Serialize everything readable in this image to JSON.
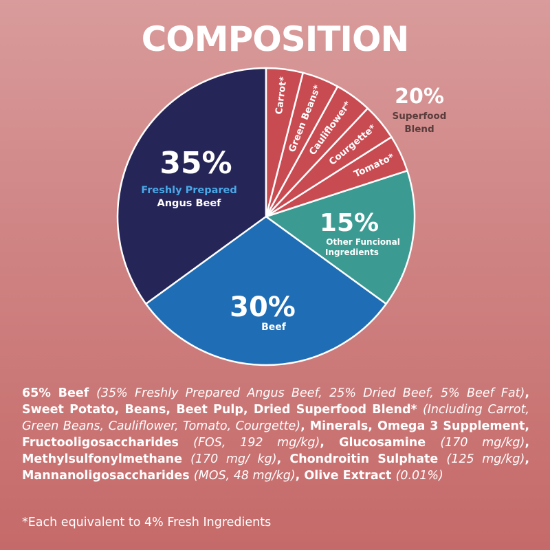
{
  "title": "COMPOSITION",
  "chart_data": {
    "type": "pie",
    "slices": [
      {
        "value": 35,
        "label": "Freshly Prepared",
        "sublabel": "Angus Beef",
        "pct_text": "35%",
        "color": "#262557"
      },
      {
        "value": 30,
        "label": "Beef",
        "pct_text": "30%",
        "color": "#1f6eb5"
      },
      {
        "value": 15,
        "label": "Other Funcional",
        "sublabel": "Ingredients",
        "pct_text": "15%",
        "color": "#3b9a91"
      },
      {
        "value": 4,
        "label": "Tomato*",
        "color": "#c94b52"
      },
      {
        "value": 4,
        "label": "Courgette*",
        "color": "#c94b52"
      },
      {
        "value": 4,
        "label": "Cauliflower*",
        "color": "#c94b52"
      },
      {
        "value": 4,
        "label": "Green Beans*",
        "color": "#c94b52"
      },
      {
        "value": 4,
        "label": "Carrot*",
        "color": "#c94b52"
      }
    ],
    "group_annotation": {
      "pct_text": "20%",
      "line1": "Superfood",
      "line2": "Blend"
    },
    "colors": {
      "label_light": "#4aa8e8",
      "annotation_text": "#5a3c3c"
    }
  },
  "ingredients": [
    {
      "text": "65% Beef ",
      "style": "b"
    },
    {
      "text": "(35% Freshly Prepared Angus Beef, 25% Dried Beef, 5% Beef Fat)",
      "style": "i"
    },
    {
      "text": ", Sweet Potato, Beans, Beet Pulp, Dried Superfood Blend* ",
      "style": "b"
    },
    {
      "text": "(Including Carrot, Green Beans, Cauliflower, Tomato, Courgette)",
      "style": "i"
    },
    {
      "text": ", Minerals, Omega 3 Supplement, Fructooligosaccharides ",
      "style": "b"
    },
    {
      "text": "(FOS, 192 mg/kg)",
      "style": "i"
    },
    {
      "text": ", Glucosamine ",
      "style": "b"
    },
    {
      "text": "(170 mg/kg)",
      "style": "i"
    },
    {
      "text": ", Methylsulfonylmethane ",
      "style": "b"
    },
    {
      "text": "(170 mg/ kg)",
      "style": "i"
    },
    {
      "text": ", Chondroitin Sulphate ",
      "style": "b"
    },
    {
      "text": "(125 mg/kg)",
      "style": "i"
    },
    {
      "text": ", Mannanoligosaccharides ",
      "style": "b"
    },
    {
      "text": "(MOS, 48 mg/kg)",
      "style": "i"
    },
    {
      "text": ", Olive Extract ",
      "style": "b"
    },
    {
      "text": "(0.01%)",
      "style": "i"
    }
  ],
  "footnote": "*Each equivalent to 4% Fresh Ingredients"
}
